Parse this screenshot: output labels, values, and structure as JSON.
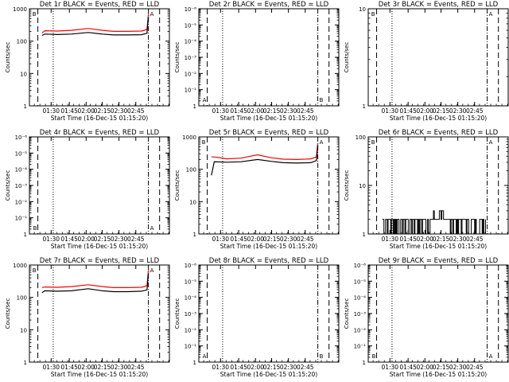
{
  "figure": {
    "xlabel": "Start Time (16-Dec-15 01:15:20)",
    "ylabel": "Counts/sec",
    "x_tick_labels": [
      "01:30",
      "01:45",
      "02:00",
      "02:15",
      "02:30",
      "02:45"
    ],
    "colors": {
      "events": "#000000",
      "lld": "#ff0000",
      "axes": "#000000",
      "background": "#ffffff"
    }
  },
  "chart_data": [
    {
      "type": "line",
      "title": "Det 1r BLACK = Events, RED = LLD",
      "xlabel": "Start Time (16-Dec-15 01:15:20)",
      "ylabel": "Counts/sec",
      "yscale": "log",
      "ylim": [
        1,
        1000
      ],
      "y_tick_labels": [
        "1",
        "10",
        "100",
        "1000"
      ],
      "x_tick_labels": [
        "01:30",
        "01:45",
        "02:00",
        "02:15",
        "02:30",
        "02:45"
      ],
      "vlines": {
        "dotted": [
          0.17
        ],
        "dashdot": [
          0.85
        ]
      },
      "dashed_right": true,
      "marker_labels": [],
      "corner_left": "B",
      "corner_right": "A",
      "series": [
        {
          "color": "#ff0000",
          "x": [
            0.09,
            0.11,
            0.2,
            0.3,
            0.42,
            0.52,
            0.6,
            0.7,
            0.8,
            0.84,
            0.85
          ],
          "y": [
            180,
            210,
            205,
            215,
            245,
            215,
            200,
            200,
            205,
            230,
            700
          ]
        },
        {
          "color": "#000000",
          "x": [
            0.09,
            0.11,
            0.2,
            0.3,
            0.42,
            0.52,
            0.6,
            0.7,
            0.8,
            0.84,
            0.85
          ],
          "y": [
            150,
            165,
            160,
            165,
            185,
            165,
            155,
            155,
            158,
            175,
            550
          ]
        }
      ]
    },
    {
      "type": "line",
      "title": "Det 2r BLACK = Events, RED = LLD",
      "xlabel": "Start Time (16-Dec-15 01:15:20)",
      "ylabel": "Counts/sec",
      "yscale": "log",
      "ylim": [
        1,
        10
      ],
      "y_tick_labels": [
        "1",
        "10⁻¹",
        "10⁻²",
        "10⁻³",
        "10⁻⁴",
        "10⁻⁵",
        "10⁻⁶"
      ],
      "x_tick_labels": [
        "01:30",
        "01:45",
        "02:00",
        "02:15",
        "02:30",
        "02:45"
      ],
      "vlines": {
        "dotted": [
          0.17
        ],
        "dashdot": [
          0.85
        ]
      },
      "dashed_right": true,
      "marker_labels": [
        "A",
        "B"
      ],
      "corner_left": "",
      "corner_right": "",
      "series": []
    },
    {
      "type": "line",
      "title": "Det 3r BLACK = Events, RED = LLD",
      "xlabel": "Start Time (16-Dec-15 01:15:20)",
      "ylabel": "Counts/sec",
      "yscale": "log",
      "ylim": [
        1,
        10
      ],
      "y_tick_labels": [
        "1",
        "10"
      ],
      "x_tick_labels": [
        "01:30",
        "01:45",
        "02:00",
        "02:15",
        "02:30",
        "02:45"
      ],
      "vlines": {
        "dotted": [
          0.17
        ],
        "dashdot": [
          0.85
        ]
      },
      "dashed_right": true,
      "marker_labels": [],
      "corner_left": "B",
      "corner_right": "A",
      "series": []
    },
    {
      "type": "line",
      "title": "Det 4r BLACK = Events, RED = LLD",
      "xlabel": "Start Time (16-Dec-15 01:15:20)",
      "ylabel": "Counts/sec",
      "yscale": "log",
      "ylim": [
        1,
        10
      ],
      "y_tick_labels": [
        "1",
        "10⁻¹",
        "10⁻²",
        "10⁻³",
        "10⁻⁴",
        "10⁻⁵",
        "10⁻⁶"
      ],
      "x_tick_labels": [
        "01:30",
        "01:45",
        "02:00",
        "02:15",
        "02:30",
        "02:45"
      ],
      "vlines": {
        "dotted": [
          0.17
        ],
        "dashdot": [
          0.85
        ]
      },
      "dashed_right": true,
      "marker_labels": [
        "B",
        "A"
      ],
      "corner_left": "",
      "corner_right": "",
      "series": []
    },
    {
      "type": "line",
      "title": "Det 5r BLACK = Events, RED = LLD",
      "xlabel": "Start Time (16-Dec-15 01:15:20)",
      "ylabel": "Counts/sec",
      "yscale": "log",
      "ylim": [
        1,
        1000
      ],
      "y_tick_labels": [
        "1",
        "10",
        "100",
        "1000"
      ],
      "x_tick_labels": [
        "01:30",
        "01:45",
        "02:00",
        "02:15",
        "02:30",
        "02:45"
      ],
      "vlines": {
        "dotted": [
          0.17
        ],
        "dashdot": [
          0.85
        ]
      },
      "dashed_right": true,
      "marker_labels": [],
      "corner_left": "B",
      "corner_right": "A",
      "series": [
        {
          "color": "#ff0000",
          "x": [
            0.09,
            0.11,
            0.2,
            0.3,
            0.42,
            0.52,
            0.6,
            0.7,
            0.8,
            0.84,
            0.85
          ],
          "y": [
            240,
            240,
            210,
            220,
            280,
            225,
            205,
            200,
            210,
            240,
            650
          ]
        },
        {
          "color": "#000000",
          "x": [
            0.09,
            0.11,
            0.2,
            0.3,
            0.42,
            0.52,
            0.6,
            0.7,
            0.8,
            0.84,
            0.85
          ],
          "y": [
            65,
            170,
            165,
            170,
            200,
            175,
            160,
            155,
            160,
            185,
            550
          ]
        }
      ]
    },
    {
      "type": "line",
      "title": "Det 6r BLACK = Events, RED = LLD",
      "xlabel": "Start Time (16-Dec-15 01:15:20)",
      "ylabel": "Counts/sec",
      "yscale": "log",
      "ylim": [
        1,
        100
      ],
      "y_tick_labels": [
        "1",
        "10",
        "100"
      ],
      "x_tick_labels": [
        "01:30",
        "01:45",
        "02:00",
        "02:15",
        "02:30",
        "02:45"
      ],
      "vlines": {
        "dotted": [
          0.17
        ],
        "dashdot": [
          0.85
        ]
      },
      "dashed_right": true,
      "marker_labels": [],
      "corner_left": "B",
      "corner_right": "A",
      "series": [
        {
          "color": "#000000",
          "style": "noise",
          "x_range": [
            0.1,
            0.84
          ],
          "levels": [
            1,
            2,
            3
          ]
        }
      ]
    },
    {
      "type": "line",
      "title": "Det 7r BLACK = Events, RED = LLD",
      "xlabel": "Start Time (16-Dec-15 01:15:20)",
      "ylabel": "Counts/sec",
      "yscale": "log",
      "ylim": [
        1,
        1000
      ],
      "y_tick_labels": [
        "1",
        "10",
        "100",
        "1000"
      ],
      "x_tick_labels": [
        "01:30",
        "01:45",
        "02:00",
        "02:15",
        "02:30",
        "02:45"
      ],
      "vlines": {
        "dotted": [
          0.17
        ],
        "dashdot": [
          0.85
        ]
      },
      "dashed_right": true,
      "marker_labels": [],
      "corner_left": "B",
      "corner_right": "A",
      "series": [
        {
          "color": "#ff0000",
          "x": [
            0.09,
            0.11,
            0.2,
            0.3,
            0.42,
            0.52,
            0.6,
            0.7,
            0.8,
            0.84,
            0.85
          ],
          "y": [
            200,
            210,
            205,
            215,
            245,
            215,
            200,
            200,
            205,
            230,
            700
          ]
        },
        {
          "color": "#000000",
          "x": [
            0.09,
            0.11,
            0.2,
            0.3,
            0.42,
            0.52,
            0.6,
            0.7,
            0.8,
            0.84,
            0.85
          ],
          "y": [
            140,
            160,
            155,
            160,
            185,
            160,
            150,
            150,
            155,
            170,
            550
          ]
        }
      ]
    },
    {
      "type": "line",
      "title": "Det 8r BLACK = Events, RED = LLD",
      "xlabel": "Start Time (16-Dec-15 01:15:20)",
      "ylabel": "Counts/sec",
      "yscale": "log",
      "ylim": [
        1,
        10
      ],
      "y_tick_labels": [
        "1",
        "10⁻¹",
        "10⁻²",
        "10⁻³",
        "10⁻⁴",
        "10⁻⁵",
        "10⁻⁶"
      ],
      "x_tick_labels": [
        "01:30",
        "01:45",
        "02:00",
        "02:15",
        "02:30",
        "02:45"
      ],
      "vlines": {
        "dotted": [
          0.17
        ],
        "dashdot": [
          0.85
        ]
      },
      "dashed_right": true,
      "marker_labels": [
        "A",
        "B"
      ],
      "corner_left": "",
      "corner_right": "",
      "series": []
    },
    {
      "type": "line",
      "title": "Det 9r BLACK = Events, RED = LLD",
      "xlabel": "Start Time (16-Dec-15 01:15:20)",
      "ylabel": "Counts/sec",
      "yscale": "log",
      "ylim": [
        1,
        10
      ],
      "y_tick_labels": [
        "1",
        "10⁻¹",
        "10⁻²",
        "10⁻³",
        "10⁻⁴",
        "10⁻⁵",
        "10⁻⁶"
      ],
      "x_tick_labels": [
        "01:30",
        "01:45",
        "02:00",
        "02:15",
        "02:30",
        "02:45"
      ],
      "vlines": {
        "dotted": [
          0.17
        ],
        "dashdot": [
          0.85
        ]
      },
      "dashed_right": true,
      "marker_labels": [
        "B",
        "A"
      ],
      "corner_left": "",
      "corner_right": "",
      "series": []
    }
  ]
}
